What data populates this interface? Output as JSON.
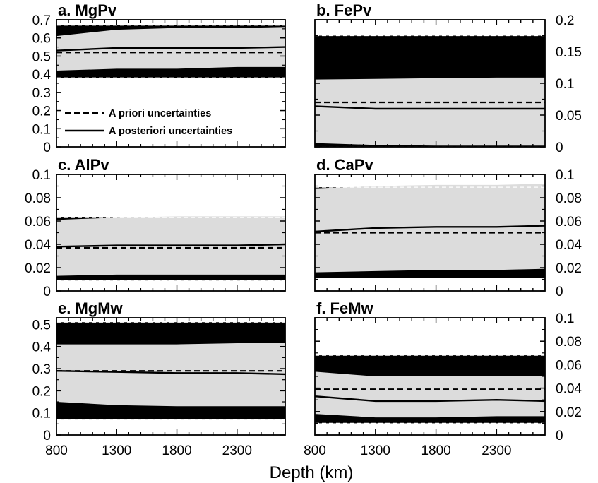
{
  "chart_data": {
    "xlabel": "Depth (km)",
    "x_ticks": [
      800,
      1300,
      1800,
      2300
    ],
    "legend": {
      "position": "lower-left of panel a",
      "entries": [
        {
          "label": "A priori uncertainties",
          "style": "dashed"
        },
        {
          "label": "A posteriori uncertainties",
          "style": "solid"
        }
      ]
    },
    "colors": {
      "posterior_band": "#dcdcdc",
      "prior_band": "#000000",
      "line": "#000000"
    },
    "panels": [
      {
        "id": "a",
        "title": "a. MgPv",
        "type": "area",
        "yaxis": "left",
        "ylim": [
          0,
          0.7
        ],
        "y_ticks": [
          "0",
          "0.1",
          "0.2",
          "0.3",
          "0.4",
          "0.5",
          "0.6",
          "0.7"
        ],
        "x": [
          800,
          1300,
          1800,
          2300,
          2700
        ],
        "prior": {
          "mean": 0.52,
          "lower": 0.38,
          "upper": 0.67
        },
        "posterior_upper": [
          0.61,
          0.645,
          0.655,
          0.655,
          0.66
        ],
        "posterior_mean": [
          0.53,
          0.545,
          0.545,
          0.545,
          0.55
        ],
        "posterior_lower": [
          0.42,
          0.43,
          0.43,
          0.44,
          0.44
        ]
      },
      {
        "id": "b",
        "title": "b. FePv",
        "type": "area",
        "yaxis": "right",
        "ylim": [
          0,
          0.2
        ],
        "y_ticks": [
          "0",
          "0.05",
          "0.1",
          "0.15",
          "0.2"
        ],
        "x": [
          800,
          1300,
          1800,
          2300,
          2700
        ],
        "prior": {
          "mean": 0.07,
          "lower": 0.0,
          "upper": 0.175
        },
        "posterior_upper": [
          0.106,
          0.107,
          0.108,
          0.109,
          0.109
        ],
        "posterior_mean": [
          0.064,
          0.06,
          0.06,
          0.06,
          0.06
        ],
        "posterior_lower": [
          0.006,
          0.003,
          0.002,
          0.002,
          0.002
        ]
      },
      {
        "id": "c",
        "title": "c. AlPv",
        "type": "area",
        "yaxis": "left",
        "ylim": [
          0,
          0.1
        ],
        "y_ticks": [
          "0",
          "0.02",
          "0.04",
          "0.06",
          "0.08",
          "0.1"
        ],
        "x": [
          800,
          1300,
          1800,
          2300,
          2700
        ],
        "prior": {
          "mean": 0.037,
          "lower": 0.009,
          "upper": 0.063
        },
        "posterior_upper": [
          0.061,
          0.063,
          0.064,
          0.064,
          0.064
        ],
        "posterior_mean": [
          0.038,
          0.039,
          0.039,
          0.039,
          0.04
        ],
        "posterior_lower": [
          0.013,
          0.014,
          0.014,
          0.014,
          0.014
        ]
      },
      {
        "id": "d",
        "title": "d. CaPv",
        "type": "area",
        "yaxis": "right",
        "ylim": [
          0,
          0.1
        ],
        "y_ticks": [
          "0",
          "0.02",
          "0.04",
          "0.06",
          "0.08",
          "0.1"
        ],
        "x": [
          800,
          1300,
          1800,
          2300,
          2700
        ],
        "prior": {
          "mean": 0.05,
          "lower": 0.011,
          "upper": 0.089
        },
        "posterior_upper": [
          0.088,
          0.09,
          0.091,
          0.091,
          0.092
        ],
        "posterior_mean": [
          0.051,
          0.054,
          0.055,
          0.055,
          0.056
        ],
        "posterior_lower": [
          0.016,
          0.017,
          0.018,
          0.018,
          0.019
        ]
      },
      {
        "id": "e",
        "title": "e. MgMw",
        "type": "area",
        "yaxis": "left",
        "ylim": [
          0,
          0.53
        ],
        "y_ticks": [
          "0",
          "0.1",
          "0.2",
          "0.3",
          "0.4",
          "0.5"
        ],
        "x": [
          800,
          1300,
          1800,
          2300,
          2700
        ],
        "prior": {
          "mean": 0.29,
          "lower": 0.07,
          "upper": 0.51
        },
        "posterior_upper": [
          0.41,
          0.41,
          0.41,
          0.415,
          0.415
        ],
        "posterior_mean": [
          0.29,
          0.285,
          0.28,
          0.28,
          0.275
        ],
        "posterior_lower": [
          0.15,
          0.135,
          0.13,
          0.13,
          0.13
        ]
      },
      {
        "id": "f",
        "title": "f. FeMw",
        "type": "area",
        "yaxis": "right",
        "ylim": [
          0,
          0.1
        ],
        "y_ticks": [
          "0",
          "0.02",
          "0.04",
          "0.06",
          "0.08",
          "0.1"
        ],
        "x": [
          800,
          1300,
          1800,
          2300,
          2700
        ],
        "prior": {
          "mean": 0.039,
          "lower": 0.01,
          "upper": 0.068
        },
        "posterior_upper": [
          0.054,
          0.05,
          0.05,
          0.05,
          0.05
        ],
        "posterior_mean": [
          0.033,
          0.029,
          0.029,
          0.03,
          0.029
        ],
        "posterior_lower": [
          0.018,
          0.015,
          0.015,
          0.016,
          0.016
        ]
      }
    ]
  }
}
